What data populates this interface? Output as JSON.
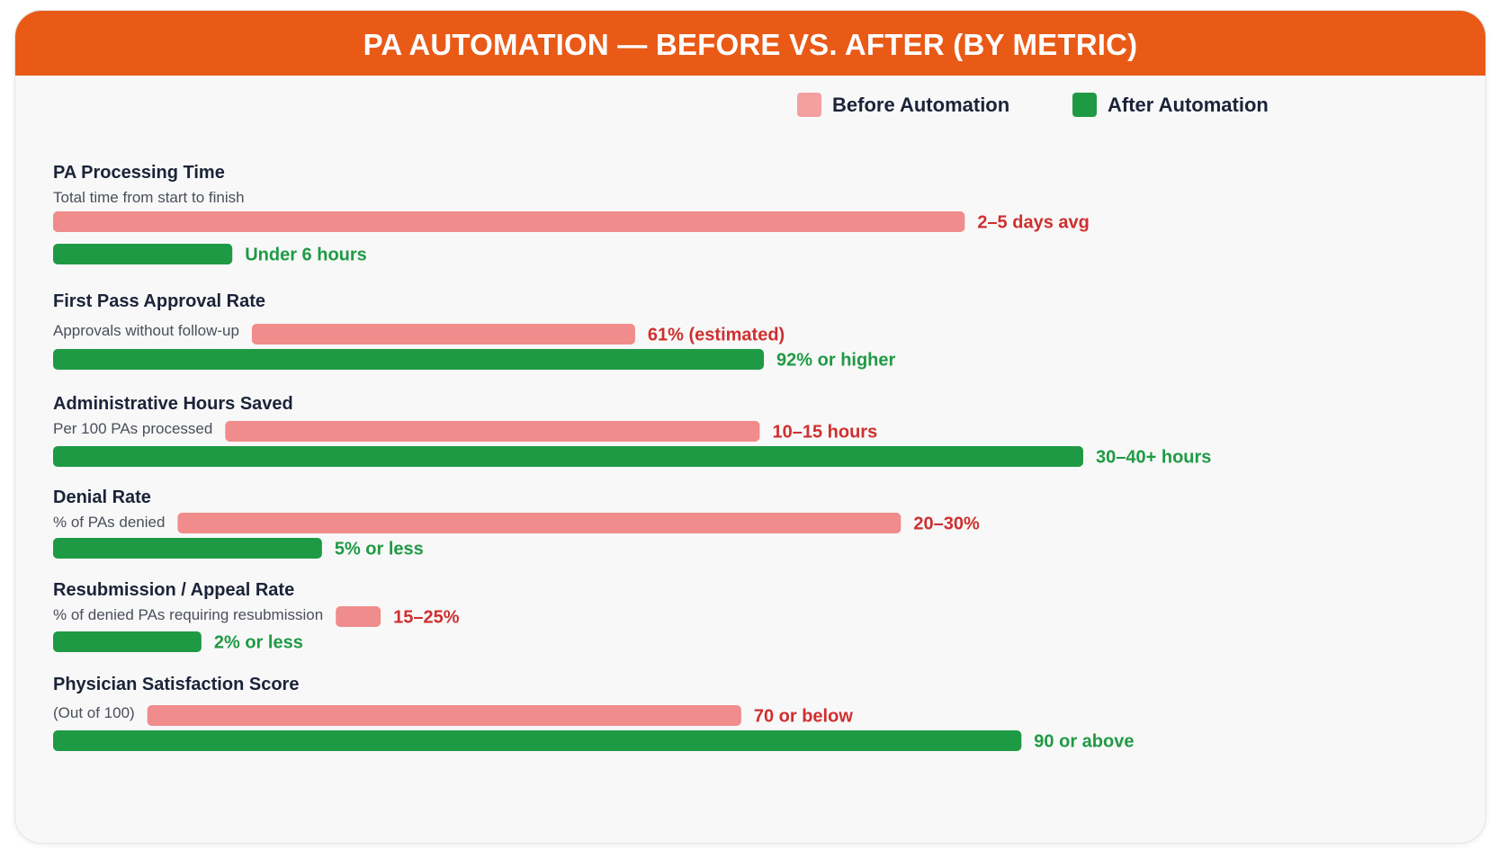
{
  "title": "PA AUTOMATION — BEFORE VS. AFTER (BY METRIC)",
  "legend": {
    "before_label": "Before Automation",
    "after_label": "After Automation"
  },
  "colors": {
    "header": "#e95a17",
    "before": "#f08c8c",
    "after": "#1f9a44",
    "before_label": "#cf2f2f",
    "after_label": "#1f9a44",
    "metric_title": "#1b2338",
    "metric_subtitle": "#4a4f5a"
  },
  "chart_data": {
    "type": "bar",
    "orientation": "horizontal",
    "axis": "none",
    "grid": false,
    "legend_position": "top-right",
    "series": [
      {
        "name": "Before Automation",
        "key": "before"
      },
      {
        "name": "After Automation",
        "key": "after"
      }
    ],
    "metrics": [
      {
        "title": "PA Processing Time",
        "subtitle": "Total time from start to finish",
        "before": {
          "label": "2–5 days avg",
          "fill": 0.885
        },
        "after": {
          "label": "Under 6 hours",
          "fill": 0.174
        }
      },
      {
        "title": "First Pass Approval Rate",
        "subtitle": "Approvals without follow-up",
        "before": {
          "label": "61% (estimated)",
          "fill": 0.565
        },
        "after": {
          "label": "92% or higher",
          "fill": 0.69
        }
      },
      {
        "title": "Administrative Hours Saved",
        "subtitle": "Per 100 PAs processed",
        "before": {
          "label": "10–15 hours",
          "fill": 0.686
        },
        "after": {
          "label": "30–40+ hours",
          "fill": 1.0
        }
      },
      {
        "title": "Denial Rate",
        "subtitle": "% of PAs denied",
        "before": {
          "label": "20–30%",
          "fill": 0.823
        },
        "after": {
          "label": "5% or less",
          "fill": 0.261
        }
      },
      {
        "title": "Resubmission / Appeal Rate",
        "subtitle": "% of denied PAs requiring resubmission",
        "before": {
          "label": "15–25%",
          "fill": 0.318
        },
        "after": {
          "label": "2% or less",
          "fill": 0.144
        }
      },
      {
        "title": "Physician Satisfaction Score",
        "subtitle": "(Out of 100)",
        "before": {
          "label": "70 or below",
          "fill": 0.668
        },
        "after": {
          "label": "90 or above",
          "fill": 0.94
        }
      }
    ]
  }
}
